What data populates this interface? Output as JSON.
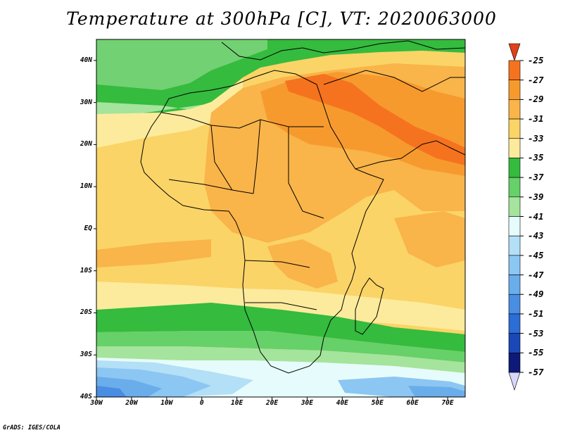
{
  "title": "Temperature at 300hPa [C], VT: 2020063000",
  "credit": "GrADS: IGES/COLA",
  "map": {
    "type": "filled-contour",
    "variable": "Temperature at 300hPa",
    "units": "C",
    "lon_range": [
      -30,
      75
    ],
    "lat_range": [
      -40,
      45
    ],
    "y_ticks": [
      {
        "lat": 40,
        "label": "40N"
      },
      {
        "lat": 30,
        "label": "30N"
      },
      {
        "lat": 20,
        "label": "20N"
      },
      {
        "lat": 10,
        "label": "10N"
      },
      {
        "lat": 0,
        "label": "EQ"
      },
      {
        "lat": -10,
        "label": "10S"
      },
      {
        "lat": -20,
        "label": "20S"
      },
      {
        "lat": -30,
        "label": "30S"
      },
      {
        "lat": -40,
        "label": "40S"
      }
    ],
    "x_ticks": [
      {
        "lon": -30,
        "label": "30W"
      },
      {
        "lon": -20,
        "label": "20W"
      },
      {
        "lon": -10,
        "label": "10W"
      },
      {
        "lon": 0,
        "label": "0"
      },
      {
        "lon": 10,
        "label": "10E"
      },
      {
        "lon": 20,
        "label": "20E"
      },
      {
        "lon": 30,
        "label": "30E"
      },
      {
        "lon": 40,
        "label": "40E"
      },
      {
        "lon": 50,
        "label": "50E"
      },
      {
        "lon": 60,
        "label": "60E"
      },
      {
        "lon": 70,
        "label": "70E"
      }
    ]
  },
  "colorbar": {
    "labels": [
      "-25",
      "-27",
      "-29",
      "-31",
      "-33",
      "-35",
      "-37",
      "-39",
      "-41",
      "-43",
      "-45",
      "-47",
      "-49",
      "-51",
      "-53",
      "-55",
      "-57"
    ],
    "colors": [
      "#e84b12",
      "#f5731e",
      "#f79a2e",
      "#f9b44a",
      "#fbd467",
      "#fdeb9d",
      "#35bb3e",
      "#66d069",
      "#a4e49c",
      "#e6fbfb",
      "#b3dff7",
      "#8cc6f2",
      "#6aadeb",
      "#4a8ee3",
      "#2c6dd6",
      "#1a48b6",
      "#0d1a78"
    ],
    "top_arrow_color": "#e0401a",
    "bottom_arrow_color": "#d9d6fb"
  }
}
